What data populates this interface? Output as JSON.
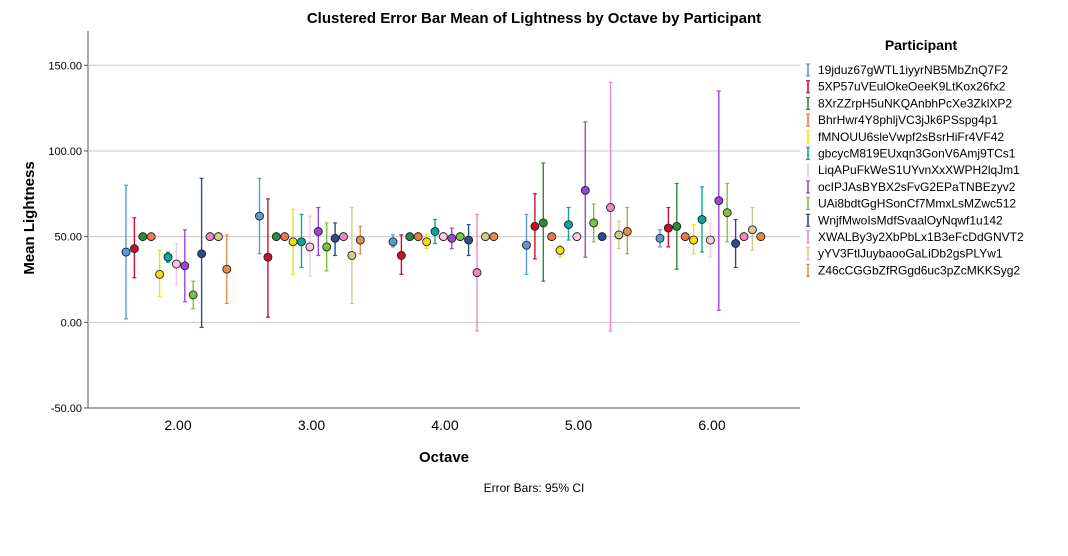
{
  "chart_data": {
    "type": "scatter",
    "subtype": "clustered-error-bar",
    "title": "Clustered Error Bar Mean of Lightness by Octave by Participant",
    "xlabel": "Octave",
    "ylabel": "Mean Lightness",
    "ylim": [
      -50,
      170
    ],
    "yticks": [
      -50,
      0,
      50,
      100,
      150
    ],
    "ytick_labels": [
      "-50.00",
      "0.00",
      "50.00",
      "100.00",
      "150.00"
    ],
    "categories": [
      "2.00",
      "3.00",
      "4.00",
      "5.00",
      "6.00"
    ],
    "grid": "horizontal",
    "legend_title": "Participant",
    "legend_position": "right",
    "note": "Error Bars: 95% CI",
    "series": [
      {
        "name": "19jduz67gWTL1iyyrNB5MbZnQ7F2",
        "color": "#5b9bd5",
        "values": [
          {
            "mean": 41,
            "low": 2,
            "high": 80
          },
          {
            "mean": 62,
            "low": 40,
            "high": 84
          },
          {
            "mean": 47,
            "low": 44,
            "high": 51
          },
          {
            "mean": 45,
            "low": 28,
            "high": 63
          },
          {
            "mean": 49,
            "low": 44,
            "high": 54
          }
        ]
      },
      {
        "name": "5XP57uVEulOkeOeeK9LtKox26fx2",
        "color": "#c8102e",
        "values": [
          {
            "mean": 43,
            "low": 26,
            "high": 61
          },
          {
            "mean": 38,
            "low": 3,
            "high": 72
          },
          {
            "mean": 39,
            "low": 28,
            "high": 51
          },
          {
            "mean": 56,
            "low": 37,
            "high": 75
          },
          {
            "mean": 55,
            "low": 44,
            "high": 67
          }
        ]
      },
      {
        "name": "8XrZZrpH5uNKQAnbhPcXe3ZklXP2",
        "color": "#2e8b3d",
        "values": [
          {
            "mean": 50,
            "low": 50,
            "high": 50
          },
          {
            "mean": 50,
            "low": 50,
            "high": 50
          },
          {
            "mean": 50,
            "low": 50,
            "high": 50
          },
          {
            "mean": 58,
            "low": 24,
            "high": 93
          },
          {
            "mean": 56,
            "low": 31,
            "high": 81
          }
        ]
      },
      {
        "name": "BhrHwr4Y8phljVC3jJk6PSspg4p1",
        "color": "#f07846",
        "values": [
          {
            "mean": 50,
            "low": 50,
            "high": 50
          },
          {
            "mean": 50,
            "low": 50,
            "high": 50
          },
          {
            "mean": 50,
            "low": 50,
            "high": 50
          },
          {
            "mean": 50,
            "low": 50,
            "high": 50
          },
          {
            "mean": 50,
            "low": 50,
            "high": 50
          }
        ]
      },
      {
        "name": "fMNOUU6sleVwpf2sBsrHiFr4VF42",
        "color": "#f0e10f",
        "values": [
          {
            "mean": 28,
            "low": 15,
            "high": 42
          },
          {
            "mean": 47,
            "low": 28,
            "high": 66
          },
          {
            "mean": 47,
            "low": 43,
            "high": 51
          },
          {
            "mean": 42,
            "low": 38,
            "high": 45
          },
          {
            "mean": 48,
            "low": 40,
            "high": 57
          }
        ]
      },
      {
        "name": "gbcycM819EUxqn3GonV6Amj9TCs1",
        "color": "#0aa6a0",
        "values": [
          {
            "mean": 38,
            "low": 35,
            "high": 41
          },
          {
            "mean": 47,
            "low": 32,
            "high": 63
          },
          {
            "mean": 53,
            "low": 46,
            "high": 60
          },
          {
            "mean": 57,
            "low": 48,
            "high": 67
          },
          {
            "mean": 60,
            "low": 41,
            "high": 79
          }
        ]
      },
      {
        "name": "LiqAPuFkWeS1UYvnXxXWPH2lqJm1",
        "color": "#f9c8dc",
        "values": [
          {
            "mean": 34,
            "low": 22,
            "high": 46
          },
          {
            "mean": 44,
            "low": 27,
            "high": 62
          },
          {
            "mean": 50,
            "low": 50,
            "high": 50
          },
          {
            "mean": 50,
            "low": 50,
            "high": 50
          },
          {
            "mean": 48,
            "low": 38,
            "high": 58
          }
        ]
      },
      {
        "name": "ocIPJAsBYBX2sFvG2EPaTNBEzyv2",
        "color": "#9b45e0",
        "values": [
          {
            "mean": 33,
            "low": 12,
            "high": 54
          },
          {
            "mean": 53,
            "low": 39,
            "high": 67
          },
          {
            "mean": 49,
            "low": 43,
            "high": 55
          },
          {
            "mean": 77,
            "low": 38,
            "high": 117
          },
          {
            "mean": 71,
            "low": 7,
            "high": 135
          }
        ]
      },
      {
        "name": "UAi8bdtGgHSonCf7MmxLsMZwc512",
        "color": "#7cc242",
        "values": [
          {
            "mean": 16,
            "low": 8,
            "high": 24
          },
          {
            "mean": 44,
            "low": 30,
            "high": 58
          },
          {
            "mean": 50,
            "low": 50,
            "high": 50
          },
          {
            "mean": 58,
            "low": 47,
            "high": 69
          },
          {
            "mean": 64,
            "low": 47,
            "high": 81
          }
        ]
      },
      {
        "name": "WnjfMwoIsMdfSvaalOyNqwf1u142",
        "color": "#2f4b8f",
        "values": [
          {
            "mean": 40,
            "low": -3,
            "high": 84
          },
          {
            "mean": 49,
            "low": 39,
            "high": 58
          },
          {
            "mean": 48,
            "low": 39,
            "high": 57
          },
          {
            "mean": 50,
            "low": 50,
            "high": 50
          },
          {
            "mean": 46,
            "low": 32,
            "high": 60
          }
        ]
      },
      {
        "name": "XWALBy3y2XbPbLx1B3eFcDdGNVT2",
        "color": "#f088c0",
        "values": [
          {
            "mean": 50,
            "low": 50,
            "high": 50
          },
          {
            "mean": 50,
            "low": 50,
            "high": 50
          },
          {
            "mean": 29,
            "low": -5,
            "high": 63
          },
          {
            "mean": 67,
            "low": -5,
            "high": 140
          },
          {
            "mean": 50,
            "low": 50,
            "high": 50
          }
        ]
      },
      {
        "name": "yYV3FtlJuybaooGaLiDb2gsPLYw1",
        "color": "#d8c890",
        "values": [
          {
            "mean": 50,
            "low": 50,
            "high": 50
          },
          {
            "mean": 39,
            "low": 11,
            "high": 67
          },
          {
            "mean": 50,
            "low": 50,
            "high": 50
          },
          {
            "mean": 51,
            "low": 43,
            "high": 59
          },
          {
            "mean": 54,
            "low": 42,
            "high": 67
          }
        ]
      },
      {
        "name": "Z46cCGGbZfRGgd6uc3pZcMKKSyg2",
        "color": "#e0904a",
        "values": [
          {
            "mean": 31,
            "low": 11,
            "high": 51
          },
          {
            "mean": 48,
            "low": 40,
            "high": 56
          },
          {
            "mean": 50,
            "low": 50,
            "high": 50
          },
          {
            "mean": 53,
            "low": 40,
            "high": 67
          },
          {
            "mean": 50,
            "low": 50,
            "high": 50
          }
        ]
      }
    ]
  }
}
